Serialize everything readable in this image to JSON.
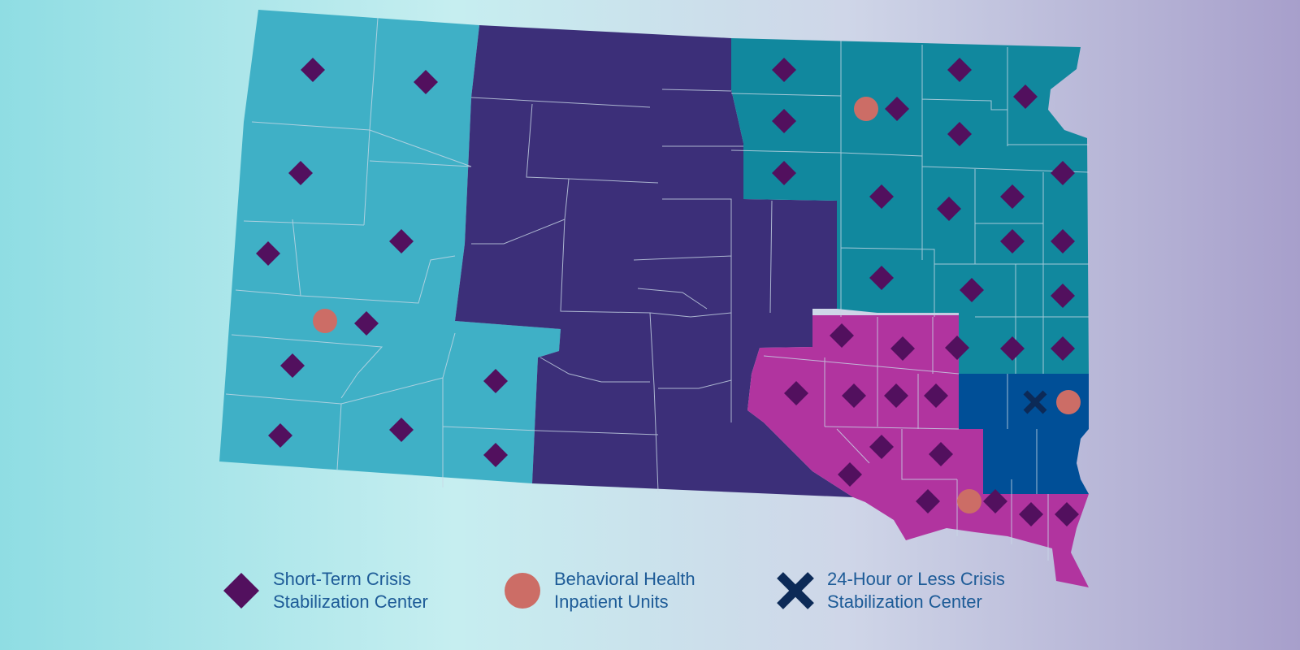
{
  "map": {
    "region_colors": {
      "northwest": "#3fb0c6",
      "central": "#3c2f79",
      "northeast": "#11889e",
      "southeast": "#b1349f",
      "sioux_falls": "#004f97"
    },
    "county_border_color": "#c8d8e6"
  },
  "legend": {
    "short_term": {
      "line1": "Short-Term Crisis",
      "line2": "Stabilization Center",
      "icon": "diamond-icon",
      "color": "#52105e"
    },
    "inpatient": {
      "line1": "Behavioral Health",
      "line2": "Inpatient Units",
      "icon": "circle-icon",
      "color": "#cc6d66"
    },
    "twentyfour": {
      "line1": "24-Hour or Less Crisis",
      "line2": "Stabilization Center",
      "icon": "x-icon",
      "color": "#0c2a57"
    }
  }
}
